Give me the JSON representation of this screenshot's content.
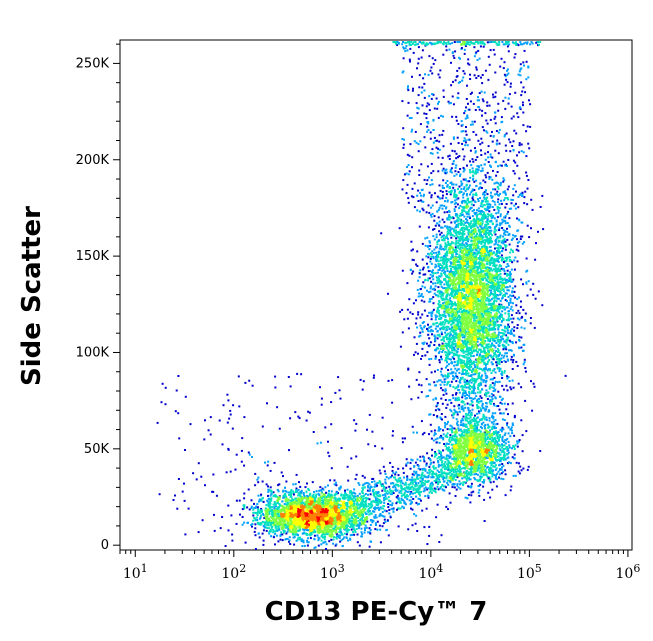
{
  "chart_data": {
    "type": "scatter",
    "subtype": "flow-cytometry-density-dot-plot",
    "xlabel": "CD13 PE-Cy™ 7",
    "ylabel": "Side Scatter",
    "x_scale": "log",
    "x_ticks": [
      {
        "value": 10,
        "base": "10",
        "exp": "1"
      },
      {
        "value": 100,
        "base": "10",
        "exp": "2"
      },
      {
        "value": 1000,
        "base": "10",
        "exp": "3"
      },
      {
        "value": 10000,
        "base": "10",
        "exp": "4"
      },
      {
        "value": 100000,
        "base": "10",
        "exp": "5"
      },
      {
        "value": 1000000,
        "base": "10",
        "exp": "6"
      }
    ],
    "xlim": [
      7,
      1100000
    ],
    "y_scale": "linear",
    "y_ticks": [
      {
        "value": 0,
        "label": "0"
      },
      {
        "value": 50000,
        "label": "50K"
      },
      {
        "value": 100000,
        "label": "100K"
      },
      {
        "value": 150000,
        "label": "150K"
      },
      {
        "value": 200000,
        "label": "200K"
      },
      {
        "value": 250000,
        "label": "250K"
      }
    ],
    "ylim": [
      -2500,
      262144
    ],
    "grid": false,
    "density_colormap": [
      "#0000cc",
      "#00a0ff",
      "#00e0c0",
      "#80ff40",
      "#ffff00",
      "#ff8000",
      "#ff0000"
    ],
    "populations": [
      {
        "x_center": 600,
        "y_center": 16000,
        "x_spread_decades": 0.28,
        "y_spread": 6000,
        "events": 2600,
        "peak_color": "#ff0000"
      },
      {
        "x_center": 25000,
        "y_center": 130000,
        "x_spread_decades": 0.22,
        "y_spread": 30000,
        "events": 5200,
        "peak_color": "#80ff40"
      },
      {
        "x_center": 28000,
        "y_center": 50000,
        "x_spread_decades": 0.18,
        "y_spread": 9000,
        "events": 1500,
        "peak_color": "#00e0c0"
      }
    ]
  }
}
